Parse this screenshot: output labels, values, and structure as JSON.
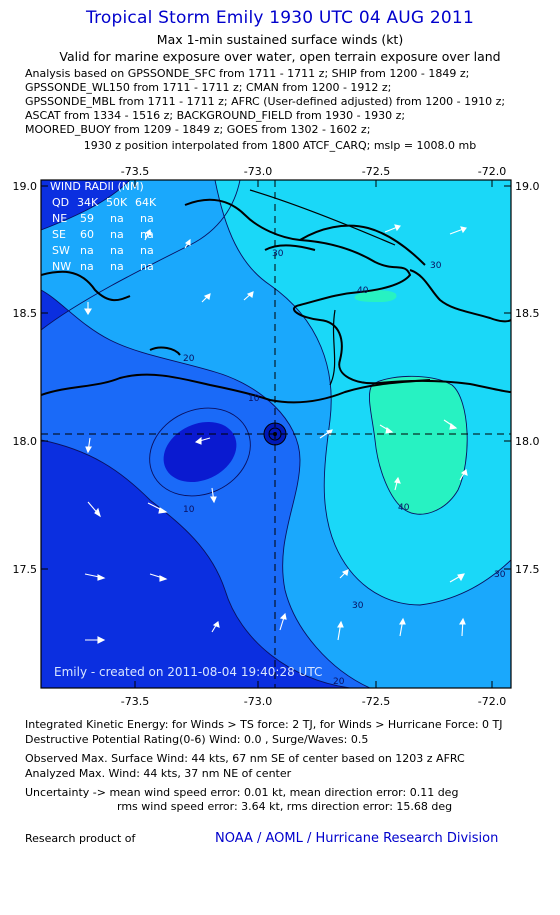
{
  "header": {
    "title": "Tropical Storm Emily 1930 UTC 04 AUG 2011",
    "subtitle1": "Max 1-min sustained surface winds (kt)",
    "subtitle2": "Valid for marine exposure over water, open terrain exposure over land"
  },
  "analysis_lines": [
    "Analysis based on GPSSONDE_SFC from 1711 - 1711 z; SHIP from 1200 - 1849 z;",
    "GPSSONDE_WL150 from 1711 - 1711 z; CMAN from 1200 - 1912 z;",
    "GPSSONDE_MBL from 1711 - 1711 z; AFRC (User-defined adjusted) from 1200 - 1910 z;",
    "ASCAT from 1334 - 1516 z; BACKGROUND_FIELD from 1930 - 1930 z;",
    "MOORED_BUOY from 1209 - 1849 z; GOES from 1302 - 1602 z;"
  ],
  "interpolation_note": "1930 z position interpolated from 1800 ATCF_CARQ; mslp = 1008.0 mb",
  "map": {
    "lon_ticks": [
      "-73.5",
      "-73.0",
      "-72.5",
      "-72.0"
    ],
    "lat_ticks": [
      "19.0",
      "18.5",
      "18.0",
      "17.5"
    ],
    "contour_labels": [
      "10",
      "20",
      "30",
      "40",
      "30",
      "30",
      "20",
      "10",
      "30",
      "40"
    ],
    "wind_radii": {
      "title": "WIND RADII (NM)",
      "header": [
        "QD",
        "34K",
        "50K",
        "64K"
      ],
      "rows": [
        [
          "NE",
          "59",
          "na",
          "na"
        ],
        [
          "SE",
          "60",
          "na",
          "na"
        ],
        [
          "SW",
          "na",
          "na",
          "na"
        ],
        [
          "NW",
          "na",
          "na",
          "na"
        ]
      ]
    },
    "created_label": "Emily - created on 2011-08-04 19:40:28 UTC",
    "colors": {
      "band_lt10": "#0b2fe0",
      "band_10_20": "#1a6af8",
      "band_20_30": "#1aa8fc",
      "band_30_40": "#1ad8f8",
      "band_ge40": "#27f2c2",
      "coast": "#000000",
      "arrow": "#ffffff"
    }
  },
  "footer": {
    "ike": "Integrated Kinetic Energy: for Winds > TS force: 2 TJ, for Winds > Hurricane Force: 0 TJ",
    "dpr": "Destructive Potential Rating(0-6)  Wind: 0.0 , Surge/Waves: 0.5",
    "obs_max": "Observed Max. Surface Wind: 44 kts, 67 nm SE of center based on 1203 z AFRC",
    "ana_max": "Analyzed Max. Wind: 44 kts, 37 nm NE of center",
    "unc1": "Uncertainty -> mean wind speed error: 0.01 kt,   mean direction error: 0.11 deg",
    "unc2": "rms wind speed error: 3.64 kt,   rms direction error: 15.68 deg",
    "research": "Research product of",
    "credit": "NOAA / AOML / Hurricane Research Division"
  }
}
